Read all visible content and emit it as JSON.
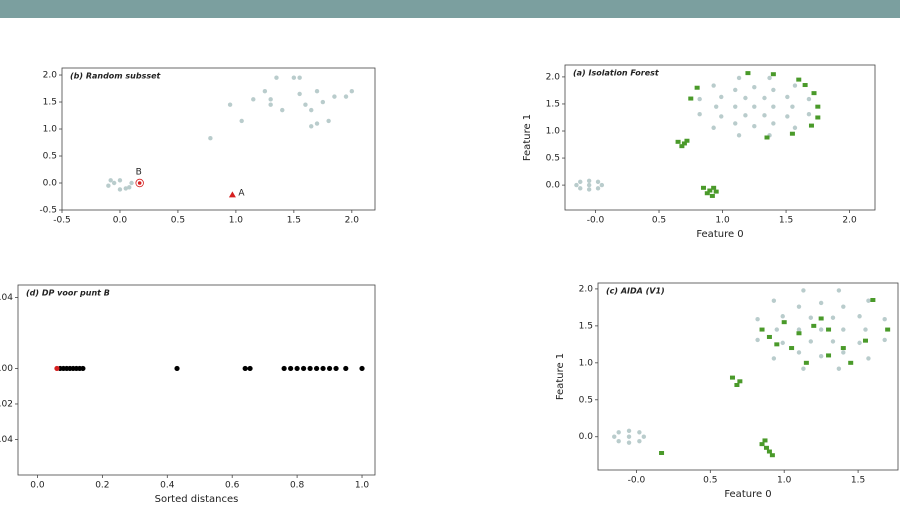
{
  "chart_data": [
    {
      "type": "scatter",
      "title": "(b) Random subsset",
      "xlim": [
        -0.5,
        2.2
      ],
      "ylim": [
        -0.5,
        2.13
      ],
      "xticks": [
        -0.5,
        {
          "value": 0,
          "label": "0.0"
        },
        0.5,
        {
          "value": 1,
          "label": "1.0"
        },
        1.5,
        {
          "value": 2,
          "label": "2.0"
        }
      ],
      "yticks": [
        -0.5,
        {
          "value": 0,
          "label": "0.0"
        },
        0.5,
        {
          "value": 1,
          "label": "1.0"
        },
        1.5,
        {
          "value": 2,
          "label": "2.0"
        }
      ],
      "annotations": [
        "A",
        "B"
      ],
      "series": [
        {
          "color": "#b9cccc",
          "marker": "circle",
          "x": [
            -0.1,
            0.0,
            0.05,
            -0.05,
            0.1,
            0.08,
            0.0,
            -0.08,
            0.78,
            0.95,
            1.05,
            1.15,
            1.25,
            1.35,
            1.3,
            1.4,
            1.5,
            1.55,
            1.6,
            1.65,
            1.7,
            1.75,
            1.8,
            1.65,
            1.7,
            1.85,
            1.95,
            2.0,
            1.55,
            1.3
          ],
          "y": [
            -0.05,
            0.05,
            -0.1,
            0.0,
            0.0,
            -0.08,
            -0.12,
            0.05,
            0.83,
            1.45,
            1.15,
            1.55,
            1.7,
            1.95,
            1.55,
            1.35,
            1.95,
            1.65,
            1.45,
            1.35,
            1.7,
            1.5,
            1.15,
            1.05,
            1.1,
            1.6,
            1.6,
            1.7,
            1.95,
            1.45
          ]
        },
        {
          "color": "#d62020",
          "marker": "triangle",
          "x": [
            0.97
          ],
          "y": [
            -0.22
          ]
        },
        {
          "color": "#d62020",
          "marker": "ring",
          "x": [
            0.17
          ],
          "y": [
            0.0
          ]
        }
      ]
    },
    {
      "type": "scatter",
      "title": "(d) DP voor punt B",
      "xlabel": "Sorted distances",
      "xlim": [
        -0.06,
        1.04
      ],
      "ylim": [
        -0.06,
        0.047
      ],
      "xticks": [
        {
          "value": 0,
          "label": "0.0"
        },
        0.2,
        0.4,
        0.6,
        0.8,
        {
          "value": 1,
          "label": "1.0"
        }
      ],
      "yticks": [
        -0.04,
        -0.02,
        {
          "value": 0,
          "label": "0.00"
        },
        0.04
      ],
      "series": [
        {
          "color": "#000000",
          "marker": "circle",
          "x": [
            0.07,
            0.08,
            0.09,
            0.1,
            0.11,
            0.12,
            0.13,
            0.14,
            0.43,
            0.64,
            0.655,
            0.76,
            0.78,
            0.8,
            0.82,
            0.84,
            0.86,
            0.88,
            0.9,
            0.92,
            0.95,
            1.0
          ],
          "y": [
            0,
            0,
            0,
            0,
            0,
            0,
            0,
            0,
            0,
            0,
            0,
            0,
            0,
            0,
            0,
            0,
            0,
            0,
            0,
            0,
            0,
            0
          ]
        },
        {
          "color": "#d62020",
          "marker": "circle",
          "x": [
            0.06
          ],
          "y": [
            0
          ]
        }
      ]
    },
    {
      "type": "scatter",
      "title": "(a) Isolation Forest",
      "xlabel": "Feature 0",
      "ylabel": "Feature 1",
      "xlim": [
        -0.24,
        2.2
      ],
      "ylim": [
        -0.46,
        2.22
      ],
      "xticks": [
        {
          "value": 0,
          "label": "-0.0"
        },
        0.5,
        {
          "value": 1,
          "label": "1.0"
        },
        1.5,
        {
          "value": 2,
          "label": "2.0"
        }
      ],
      "yticks": [
        {
          "value": 0,
          "label": "0.0"
        },
        0.5,
        {
          "value": 1,
          "label": "1.0"
        },
        1.5,
        {
          "value": 2,
          "label": "2.0"
        }
      ],
      "series": [
        {
          "color": "#b9cccc",
          "marker": "circle",
          "x": [
            1.25,
            1.4,
            1.33,
            1.18,
            1.1,
            1.18,
            1.33,
            1.55,
            1.51,
            1.4,
            1.25,
            1.1,
            0.99,
            0.95,
            0.99,
            1.1,
            1.25,
            1.4,
            1.51,
            1.68,
            1.57,
            1.37,
            1.13,
            0.93,
            0.82,
            0.82,
            0.93,
            1.13,
            1.37,
            1.57,
            1.68,
            -0.05,
            0.05,
            -0.15,
            -0.05,
            -0.05,
            0.02,
            -0.12,
            0.02,
            -0.12
          ],
          "y": [
            1.45,
            1.45,
            1.61,
            1.61,
            1.45,
            1.29,
            1.29,
            1.45,
            1.63,
            1.76,
            1.81,
            1.76,
            1.63,
            1.45,
            1.27,
            1.14,
            1.09,
            1.14,
            1.27,
            1.59,
            1.84,
            1.98,
            1.98,
            1.84,
            1.59,
            1.31,
            1.06,
            0.92,
            0.92,
            1.06,
            1.31,
            0,
            0,
            0,
            0.08,
            -0.08,
            0.06,
            0.06,
            -0.06,
            -0.06
          ]
        },
        {
          "color": "#4a9a2a",
          "marker": "square",
          "x": [
            1.75,
            1.72,
            1.65,
            1.6,
            1.4,
            1.2,
            1.75,
            1.7,
            1.55,
            1.35,
            0.8,
            0.75,
            0.65,
            0.7,
            0.68,
            0.72,
            0.85,
            0.9,
            0.93,
            0.88,
            0.95,
            0.92
          ],
          "y": [
            1.45,
            1.7,
            1.85,
            1.95,
            2.05,
            2.07,
            1.25,
            1.1,
            0.95,
            0.88,
            1.8,
            1.6,
            0.8,
            0.77,
            0.72,
            0.82,
            -0.05,
            -0.1,
            -0.05,
            -0.15,
            -0.12,
            -0.2
          ]
        }
      ]
    },
    {
      "type": "scatter",
      "title": "(c) AIDA (V1)",
      "xlabel": "Feature 0",
      "ylabel": "Feature 1",
      "xlim": [
        -0.26,
        1.77
      ],
      "ylim": [
        -0.45,
        2.08
      ],
      "xticks": [
        {
          "value": 0,
          "label": "-0.0"
        },
        0.5,
        {
          "value": 1,
          "label": "1.0"
        },
        1.5
      ],
      "yticks": [
        {
          "value": 0,
          "label": "0.0"
        },
        0.5,
        {
          "value": 1,
          "label": "1.0"
        },
        1.5,
        {
          "value": 2,
          "label": "2.0"
        }
      ],
      "series": [
        {
          "color": "#b9cccc",
          "marker": "circle",
          "x": [
            1.25,
            1.4,
            1.33,
            1.18,
            1.1,
            1.18,
            1.33,
            1.55,
            1.51,
            1.4,
            1.25,
            1.1,
            0.99,
            0.95,
            0.99,
            1.1,
            1.25,
            1.4,
            1.51,
            1.68,
            1.57,
            1.37,
            1.13,
            0.93,
            0.82,
            0.82,
            0.93,
            1.13,
            1.37,
            1.57,
            1.68,
            -0.05,
            0.05,
            -0.15,
            -0.05,
            -0.05,
            0.02,
            -0.12,
            0.02,
            -0.12
          ],
          "y": [
            1.45,
            1.45,
            1.61,
            1.61,
            1.45,
            1.29,
            1.29,
            1.45,
            1.63,
            1.76,
            1.81,
            1.76,
            1.63,
            1.45,
            1.27,
            1.14,
            1.09,
            1.14,
            1.27,
            1.59,
            1.84,
            1.98,
            1.98,
            1.84,
            1.59,
            1.31,
            1.06,
            0.92,
            0.92,
            1.06,
            1.31,
            0,
            0,
            0,
            0.08,
            -0.08,
            0.06,
            0.06,
            -0.06,
            -0.06
          ]
        },
        {
          "color": "#4a9a2a",
          "marker": "square",
          "x": [
            0.85,
            0.9,
            1.0,
            1.1,
            1.2,
            1.25,
            1.3,
            0.95,
            1.05,
            1.4,
            1.55,
            1.6,
            1.7,
            1.3,
            1.15,
            1.45,
            0.65,
            0.7,
            0.68,
            0.85,
            0.88,
            0.9,
            0.92,
            0.87,
            0.17
          ],
          "y": [
            1.45,
            1.35,
            1.55,
            1.4,
            1.5,
            1.6,
            1.45,
            1.25,
            1.2,
            1.2,
            1.3,
            1.85,
            1.45,
            1.1,
            1.0,
            1.0,
            0.8,
            0.75,
            0.7,
            -0.1,
            -0.15,
            -0.2,
            -0.25,
            -0.05,
            -0.22
          ]
        }
      ]
    }
  ]
}
